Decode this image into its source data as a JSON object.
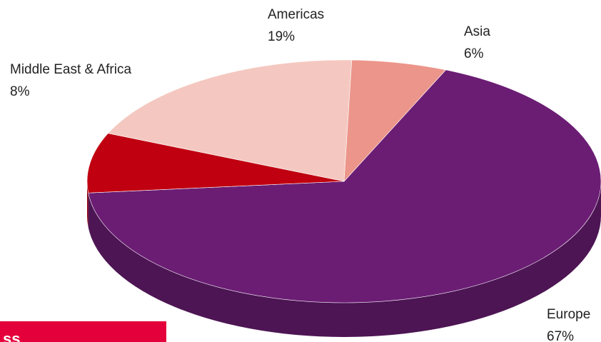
{
  "chart_data": {
    "type": "pie",
    "title": "",
    "slices": [
      {
        "label": "Europe",
        "value": 67,
        "value_label": "67%",
        "color": "#6b1d74"
      },
      {
        "label": "Middle East & Africa",
        "value": 8,
        "value_label": "8%",
        "color": "#c00010"
      },
      {
        "label": "Americas",
        "value": 19,
        "value_label": "19%",
        "color": "#f4c8c0"
      },
      {
        "label": "Asia",
        "value": 6,
        "value_label": "6%",
        "color": "#ec958a"
      }
    ],
    "style": "3d",
    "legend": "none"
  },
  "corner_banner": {
    "color": "#e4003a",
    "text": "ss"
  }
}
